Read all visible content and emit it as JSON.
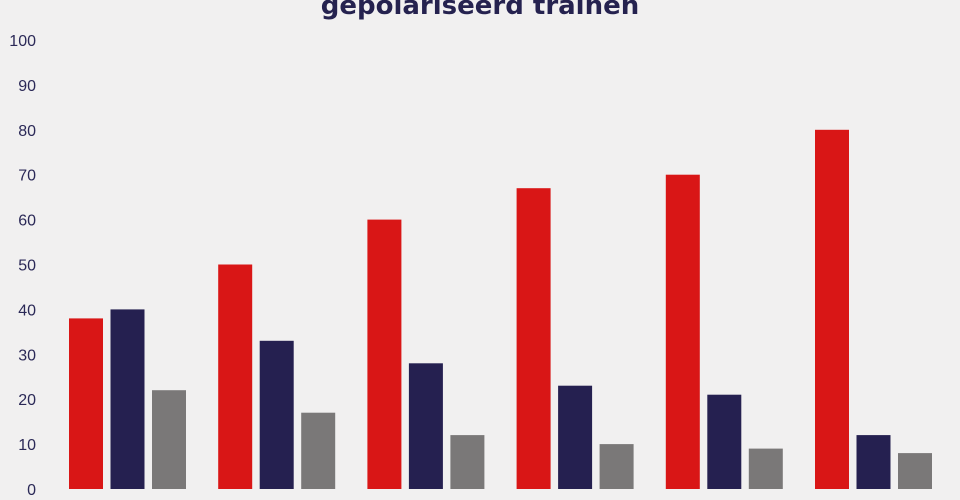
{
  "chart_data": {
    "type": "bar",
    "title": "gepolariseerd trainen",
    "xlabel": "",
    "ylabel": "",
    "ylim": [
      0,
      100
    ],
    "yticks": [
      0,
      10,
      20,
      30,
      40,
      50,
      60,
      70,
      80,
      90,
      100
    ],
    "grid": false,
    "categories": [
      "",
      "",
      "",
      "",
      "",
      ""
    ],
    "series": [
      {
        "color": "#d91616",
        "values": [
          38,
          50,
          60,
          67,
          70,
          80
        ]
      },
      {
        "color": "#252050",
        "values": [
          40,
          33,
          28,
          23,
          21,
          12
        ]
      },
      {
        "color": "#7a7878",
        "values": [
          22,
          17,
          12,
          10,
          9,
          8
        ]
      }
    ]
  }
}
